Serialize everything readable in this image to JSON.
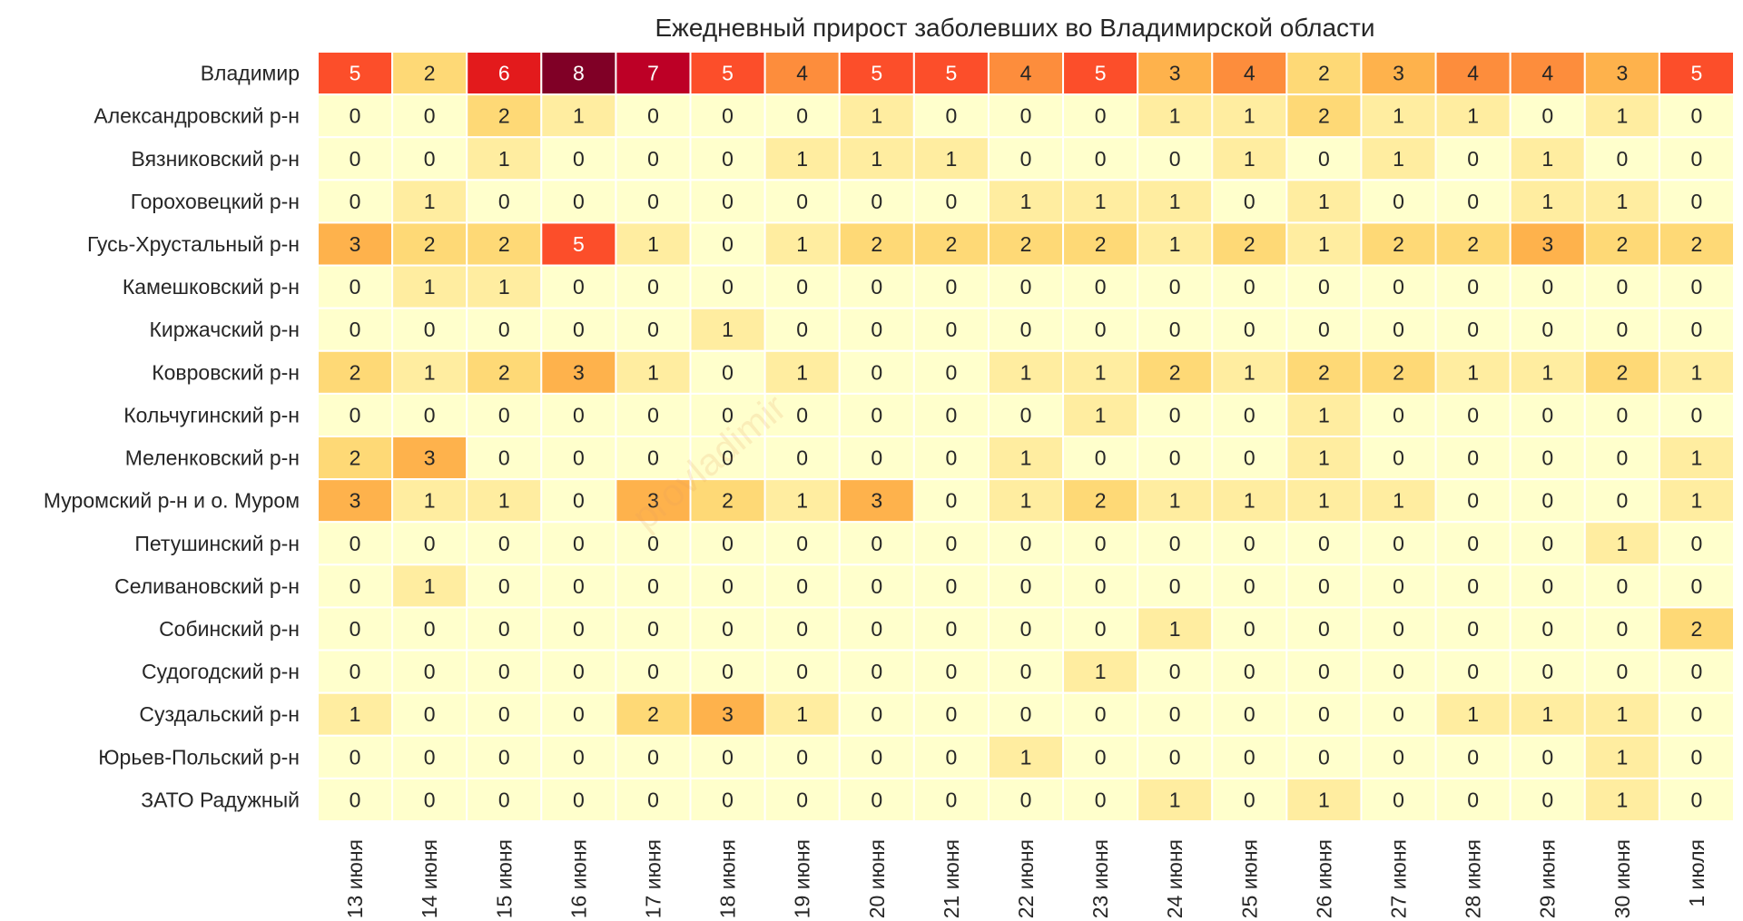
{
  "chart_data": {
    "type": "heatmap",
    "title": "Ежедневный прирост заболевших во Владимирской области",
    "xlabel": "",
    "ylabel": "",
    "colormap": "YlOrRd",
    "value_range": [
      0,
      8
    ],
    "columns": [
      "13 июня",
      "14 июня",
      "15 июня",
      "16 июня",
      "17 июня",
      "18 июня",
      "19 июня",
      "20 июня",
      "21 июня",
      "22 июня",
      "23 июня",
      "24 июня",
      "25 июня",
      "26 июня",
      "27 июня",
      "28 июня",
      "29 июня",
      "30 июня",
      "1 июля"
    ],
    "rows": [
      "Владимир",
      "Александровский р-н",
      "Вязниковский р-н",
      "Гороховецкий р-н",
      "Гусь-Хрустальный р-н",
      "Камешковский р-н",
      "Киржачский р-н",
      "Ковровский р-н",
      "Кольчугинский р-н",
      "Меленковский р-н",
      "Муромский р-н и о. Муром",
      "Петушинский р-н",
      "Селивановский р-н",
      "Собинский р-н",
      "Судогодский р-н",
      "Суздальский р-н",
      "Юрьев-Польский р-н",
      "ЗАТО Радужный"
    ],
    "values": [
      [
        5,
        2,
        6,
        8,
        7,
        5,
        4,
        5,
        5,
        4,
        5,
        3,
        4,
        2,
        3,
        4,
        4,
        3,
        5
      ],
      [
        0,
        0,
        2,
        1,
        0,
        0,
        0,
        1,
        0,
        0,
        0,
        1,
        1,
        2,
        1,
        1,
        0,
        1,
        0
      ],
      [
        0,
        0,
        1,
        0,
        0,
        0,
        1,
        1,
        1,
        0,
        0,
        0,
        1,
        0,
        1,
        0,
        1,
        0,
        0
      ],
      [
        0,
        1,
        0,
        0,
        0,
        0,
        0,
        0,
        0,
        1,
        1,
        1,
        0,
        1,
        0,
        0,
        1,
        1,
        0
      ],
      [
        3,
        2,
        2,
        5,
        1,
        0,
        1,
        2,
        2,
        2,
        2,
        1,
        2,
        1,
        2,
        2,
        3,
        2,
        2
      ],
      [
        0,
        1,
        1,
        0,
        0,
        0,
        0,
        0,
        0,
        0,
        0,
        0,
        0,
        0,
        0,
        0,
        0,
        0,
        0
      ],
      [
        0,
        0,
        0,
        0,
        0,
        1,
        0,
        0,
        0,
        0,
        0,
        0,
        0,
        0,
        0,
        0,
        0,
        0,
        0
      ],
      [
        2,
        1,
        2,
        3,
        1,
        0,
        1,
        0,
        0,
        1,
        1,
        2,
        1,
        2,
        2,
        1,
        1,
        2,
        1
      ],
      [
        0,
        0,
        0,
        0,
        0,
        0,
        0,
        0,
        0,
        0,
        1,
        0,
        0,
        1,
        0,
        0,
        0,
        0,
        0
      ],
      [
        2,
        3,
        0,
        0,
        0,
        0,
        0,
        0,
        0,
        1,
        0,
        0,
        0,
        1,
        0,
        0,
        0,
        0,
        1
      ],
      [
        3,
        1,
        1,
        0,
        3,
        2,
        1,
        3,
        0,
        1,
        2,
        1,
        1,
        1,
        1,
        0,
        0,
        0,
        1
      ],
      [
        0,
        0,
        0,
        0,
        0,
        0,
        0,
        0,
        0,
        0,
        0,
        0,
        0,
        0,
        0,
        0,
        0,
        1,
        0
      ],
      [
        0,
        1,
        0,
        0,
        0,
        0,
        0,
        0,
        0,
        0,
        0,
        0,
        0,
        0,
        0,
        0,
        0,
        0,
        0
      ],
      [
        0,
        0,
        0,
        0,
        0,
        0,
        0,
        0,
        0,
        0,
        0,
        1,
        0,
        0,
        0,
        0,
        0,
        0,
        2
      ],
      [
        0,
        0,
        0,
        0,
        0,
        0,
        0,
        0,
        0,
        0,
        1,
        0,
        0,
        0,
        0,
        0,
        0,
        0,
        0
      ],
      [
        1,
        0,
        0,
        0,
        2,
        3,
        1,
        0,
        0,
        0,
        0,
        0,
        0,
        0,
        0,
        1,
        1,
        1,
        0
      ],
      [
        0,
        0,
        0,
        0,
        0,
        0,
        0,
        0,
        0,
        1,
        0,
        0,
        0,
        0,
        0,
        0,
        0,
        1,
        0
      ],
      [
        0,
        0,
        0,
        0,
        0,
        0,
        0,
        0,
        0,
        0,
        0,
        1,
        0,
        1,
        0,
        0,
        0,
        1,
        0
      ]
    ]
  },
  "watermark": "provladimir",
  "colors": {
    "scale": [
      "#ffffcc",
      "#ffeda0",
      "#fed976",
      "#feb24c",
      "#fd8d3c",
      "#fc4e2a",
      "#e31a1c",
      "#bd0026",
      "#800026"
    ],
    "text_dark": "#262626",
    "text_light": "#ffffff",
    "grid": "#ffffff"
  }
}
